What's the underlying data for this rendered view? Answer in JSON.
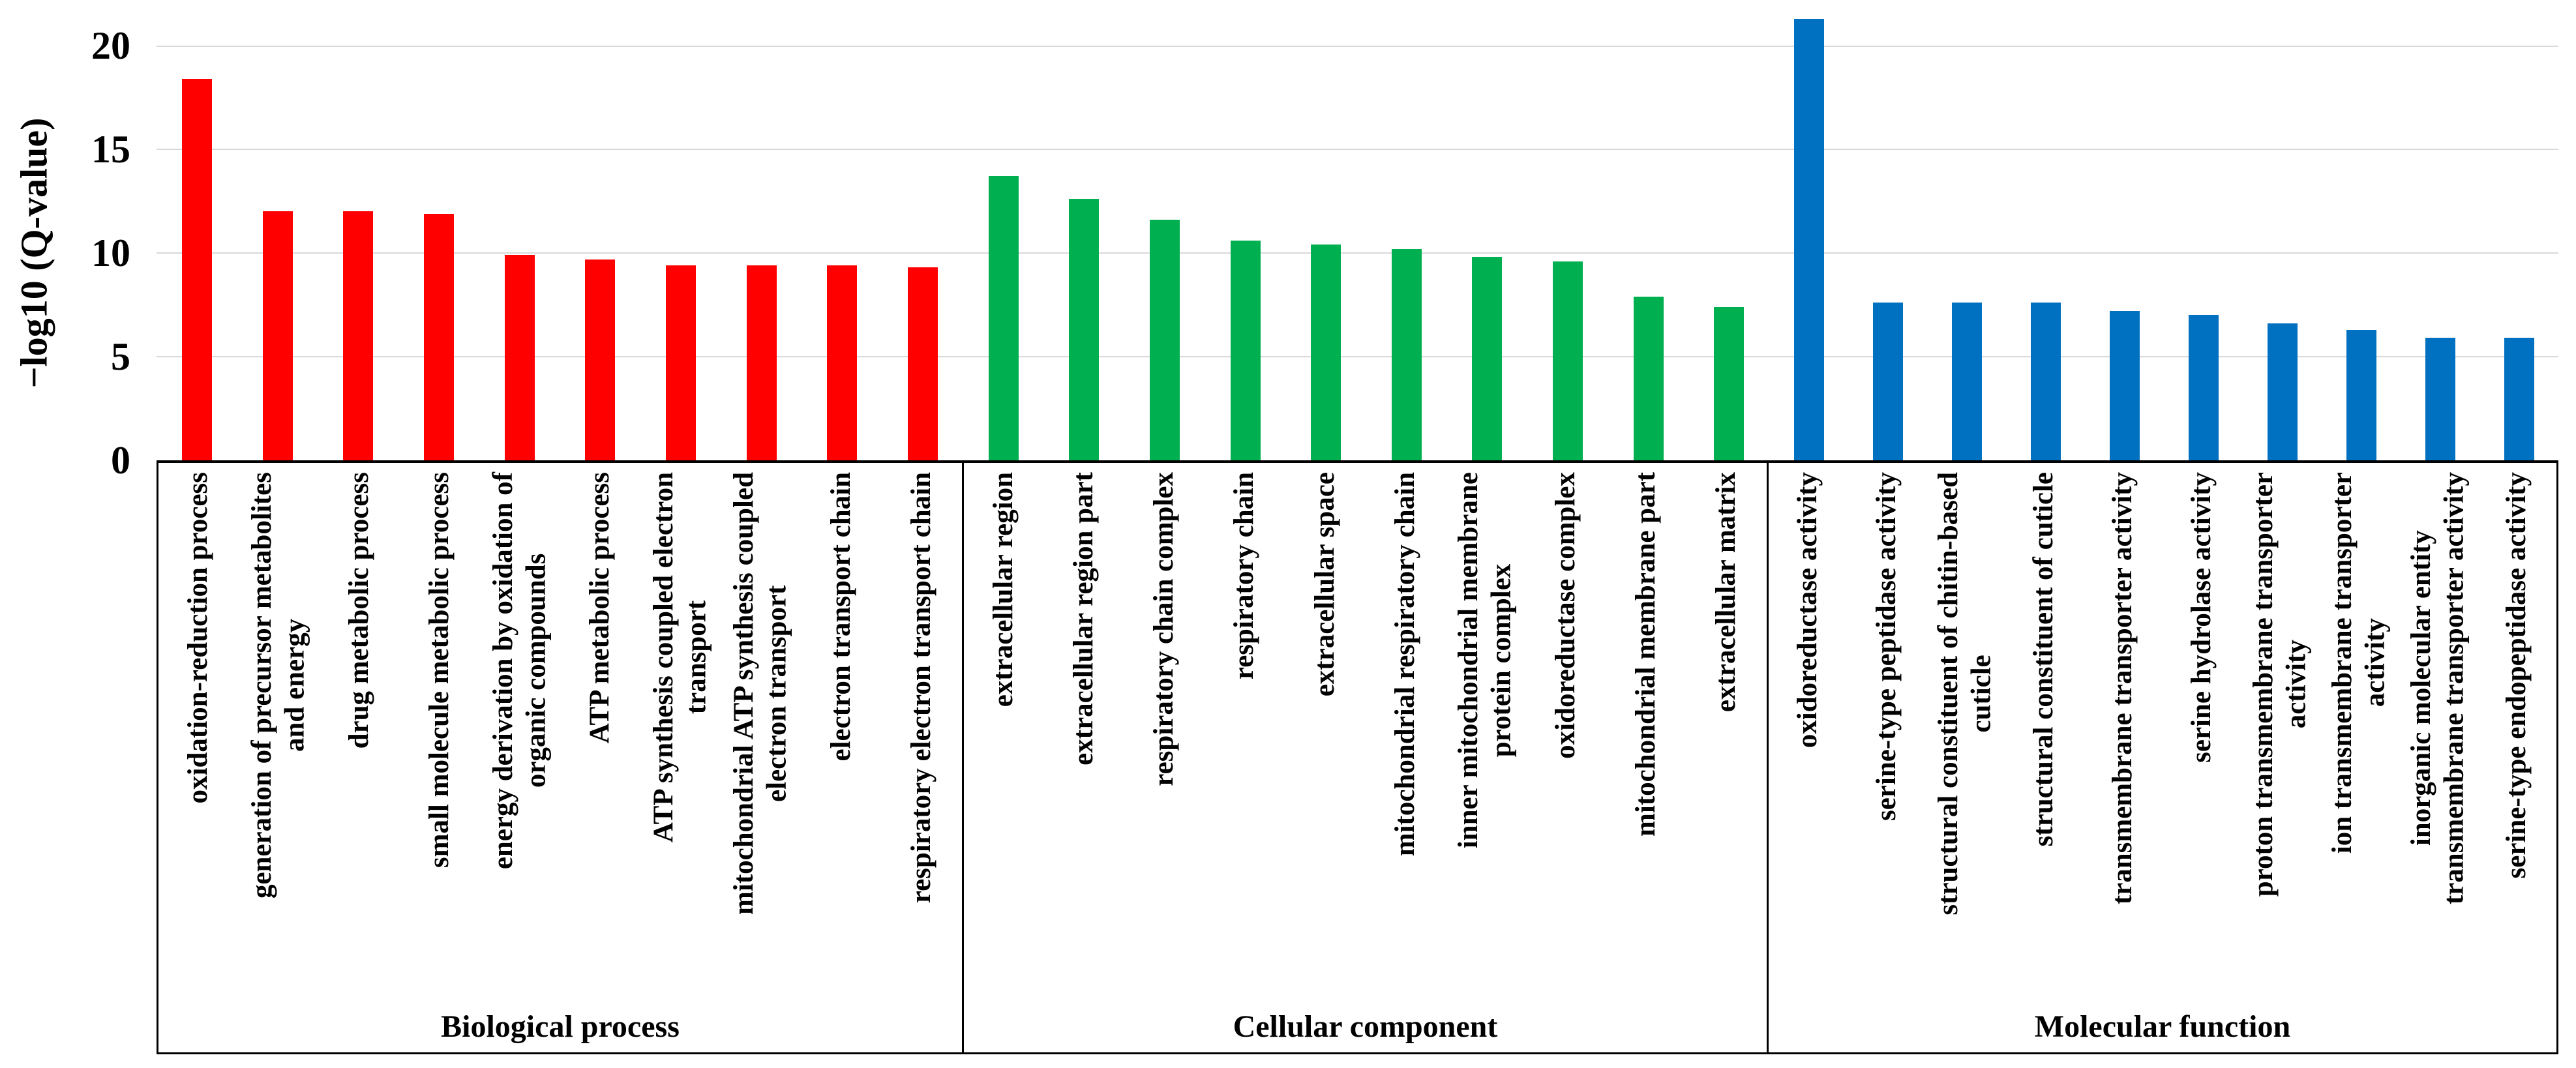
{
  "chart_data": {
    "type": "bar",
    "title": "",
    "ylabel": "−log10 (Q-value)",
    "xlabel": "",
    "ylim": [
      0,
      20
    ],
    "yticks": [
      0,
      5,
      10,
      15,
      20
    ],
    "grid": "horizontal gridlines at 5, 10, 15, 20",
    "legend_position": "none",
    "bar_label_rotation": "90deg counterclockwise (reads bottom to top)",
    "groups": [
      {
        "name": "Biological process",
        "color": "#ff0000",
        "bars": [
          {
            "value": 18.4,
            "label_lines": [
              "oxidation-reduction process"
            ]
          },
          {
            "value": 12.0,
            "label_lines": [
              "generation of precursor metabolites",
              "and energy"
            ]
          },
          {
            "value": 12.0,
            "label_lines": [
              "drug metabolic process"
            ]
          },
          {
            "value": 11.9,
            "label_lines": [
              "small molecule metabolic process"
            ]
          },
          {
            "value": 9.9,
            "label_lines": [
              "energy derivation by oxidation of",
              "organic compounds"
            ]
          },
          {
            "value": 9.7,
            "label_lines": [
              "ATP metabolic process"
            ]
          },
          {
            "value": 9.4,
            "label_lines": [
              "ATP synthesis coupled electron",
              "transport"
            ]
          },
          {
            "value": 9.4,
            "label_lines": [
              "mitochondrial ATP synthesis coupled",
              "electron transport"
            ]
          },
          {
            "value": 9.4,
            "label_lines": [
              "electron transport chain"
            ]
          },
          {
            "value": 9.3,
            "label_lines": [
              "respiratory electron transport chain"
            ]
          }
        ]
      },
      {
        "name": "Cellular component",
        "color": "#00b050",
        "bars": [
          {
            "value": 13.7,
            "label_lines": [
              "extracellular region"
            ]
          },
          {
            "value": 12.6,
            "label_lines": [
              "extracellular region part"
            ]
          },
          {
            "value": 11.6,
            "label_lines": [
              "respiratory chain complex"
            ]
          },
          {
            "value": 10.6,
            "label_lines": [
              "respiratory chain"
            ]
          },
          {
            "value": 10.4,
            "label_lines": [
              "extracellular space"
            ]
          },
          {
            "value": 10.2,
            "label_lines": [
              "mitochondrial respiratory chain"
            ]
          },
          {
            "value": 9.8,
            "label_lines": [
              "inner mitochondrial membrane",
              "protein complex"
            ]
          },
          {
            "value": 9.6,
            "label_lines": [
              "oxidoreductase complex"
            ]
          },
          {
            "value": 7.9,
            "label_lines": [
              "mitochondrial membrane part"
            ]
          },
          {
            "value": 7.4,
            "label_lines": [
              "extracellular matrix"
            ]
          }
        ]
      },
      {
        "name": "Molecular function",
        "color": "#0070c0",
        "bars": [
          {
            "value": 21.3,
            "label_lines": [
              "oxidoreductase activity"
            ]
          },
          {
            "value": 7.6,
            "label_lines": [
              "serine-type peptidase activity"
            ]
          },
          {
            "value": 7.6,
            "label_lines": [
              "structural constituent of chitin-based",
              "cuticle"
            ]
          },
          {
            "value": 7.6,
            "label_lines": [
              "structural constituent of cuticle"
            ]
          },
          {
            "value": 7.2,
            "label_lines": [
              "transmembrane transporter activity"
            ]
          },
          {
            "value": 7.0,
            "label_lines": [
              "serine hydrolase activity"
            ]
          },
          {
            "value": 6.6,
            "label_lines": [
              "proton transmembrane transporter",
              "activity"
            ]
          },
          {
            "value": 6.3,
            "label_lines": [
              "ion transmembrane transporter",
              "activity"
            ]
          },
          {
            "value": 5.9,
            "label_lines": [
              "inorganic molecular entity",
              "transmembrane transporter activity"
            ]
          },
          {
            "value": 5.9,
            "label_lines": [
              "serine-type endopeptidase activity"
            ]
          }
        ]
      }
    ],
    "colors": {
      "biological_process": "#ff0000",
      "cellular_component": "#00b050",
      "molecular_function": "#0070c0",
      "gridline": "#d9d9d9",
      "axis": "#000000"
    }
  }
}
